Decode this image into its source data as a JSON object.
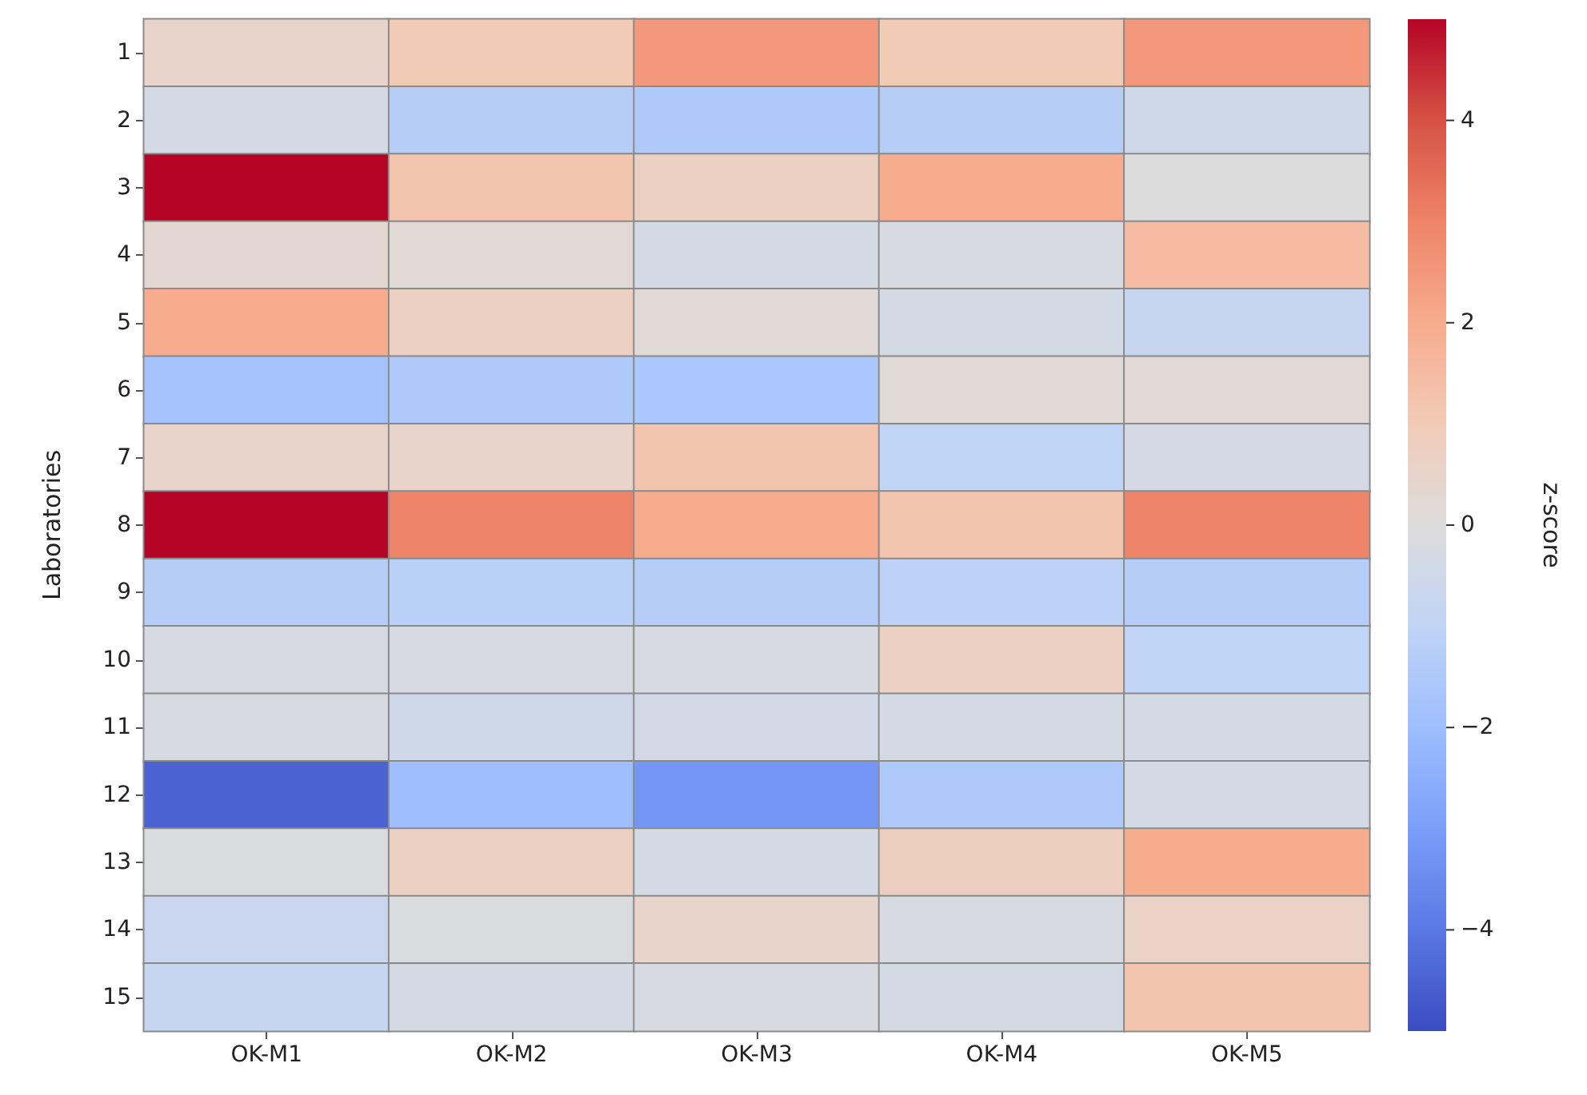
{
  "chart_data": {
    "type": "heatmap",
    "ylabel": "Laboratories",
    "clabel": "z-score",
    "categories": [
      "OK-M1",
      "OK-M2",
      "OK-M3",
      "OK-M4",
      "OK-M5"
    ],
    "y_categories": [
      "1",
      "2",
      "3",
      "4",
      "5",
      "6",
      "7",
      "8",
      "9",
      "10",
      "11",
      "12",
      "13",
      "14",
      "15"
    ],
    "cells": [
      [
        0.5,
        1,
        2.5,
        1,
        2.5
      ],
      [
        -0.3,
        -1.3,
        -1.5,
        -1.3,
        -0.5
      ],
      [
        5,
        1.2,
        0.7,
        2,
        0
      ],
      [
        0.3,
        0.2,
        -0.3,
        -0.2,
        1.5
      ],
      [
        2,
        0.7,
        0.2,
        -0.3,
        -0.8
      ],
      [
        -1.8,
        -1.5,
        -1.6,
        0.2,
        0.2
      ],
      [
        0.5,
        0.5,
        1.2,
        -1,
        -0.3
      ],
      [
        5,
        3,
        2,
        1.2,
        3
      ],
      [
        -1.3,
        -1.2,
        -1.3,
        -1.1,
        -1.3
      ],
      [
        -0.2,
        -0.2,
        -0.2,
        0.7,
        -1
      ],
      [
        -0.2,
        -0.5,
        -0.4,
        -0.3,
        -0.3
      ],
      [
        -4.5,
        -2,
        -3.2,
        -1.5,
        -0.3
      ],
      [
        -0.1,
        0.7,
        -0.3,
        0.8,
        2
      ],
      [
        -0.7,
        -0.1,
        0.5,
        -0.2,
        0.6
      ],
      [
        -0.8,
        -0.3,
        -0.2,
        -0.3,
        1.2
      ]
    ],
    "clim": [
      -5,
      5
    ],
    "cticks": [
      {
        "value": -4,
        "label": "−4"
      },
      {
        "value": -2,
        "label": "−2"
      },
      0,
      2,
      4
    ]
  }
}
